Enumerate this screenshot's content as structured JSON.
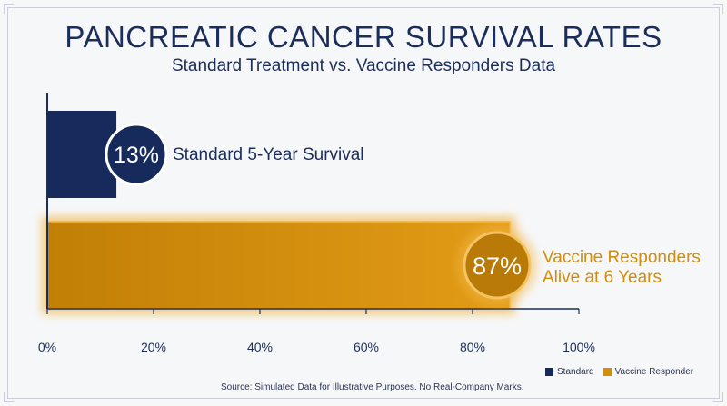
{
  "title": "PANCREATIC CANCER SURVIVAL RATES",
  "subtitle": "Standard Treatment vs. Vaccine Responders Data",
  "source": "Source: Simulated Data for Illustrative Purposes. No Real-Company Marks.",
  "colors": {
    "standard": "#172a5c",
    "vaccine": "#d18d0c",
    "vaccine_dark": "#b97a08",
    "glow": "#f2b84a"
  },
  "chart_data": {
    "type": "bar",
    "orientation": "horizontal",
    "title": "PANCREATIC CANCER SURVIVAL RATES",
    "subtitle": "Standard Treatment vs. Vaccine Responders Data",
    "categories": [
      "Standard 5-Year Survival",
      "Vaccine Responders Alive at 6 Years"
    ],
    "values": [
      13,
      87
    ],
    "value_labels": [
      "13%",
      "87%"
    ],
    "series": [
      {
        "name": "Standard",
        "values": [
          13,
          null
        ]
      },
      {
        "name": "Vaccine Responder",
        "values": [
          null,
          87
        ]
      }
    ],
    "xlim": [
      0,
      100
    ],
    "xticks": [
      0,
      20,
      40,
      60,
      80,
      100
    ],
    "xtick_labels": [
      "0%",
      "20%",
      "40%",
      "60%",
      "80%",
      "100%"
    ],
    "legend_position": "bottom-right",
    "grid": false
  },
  "callouts": {
    "standard": "Standard 5-Year Survival",
    "vaccine_line1": "Vaccine Responders",
    "vaccine_line2": "Alive at 6 Years"
  },
  "legend": [
    {
      "label": "Standard",
      "color": "#172a5c"
    },
    {
      "label": "Vaccine Responder",
      "color": "#d18d0c"
    }
  ]
}
